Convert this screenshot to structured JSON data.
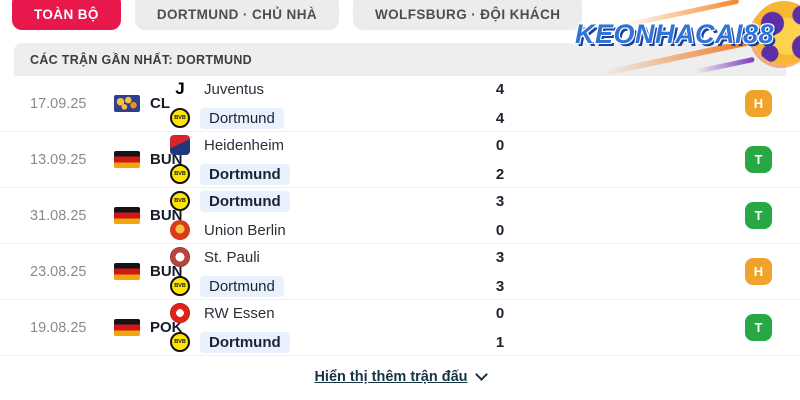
{
  "tabs": [
    {
      "label": "TOÀN BỘ",
      "active": true
    },
    {
      "label": "DORTMUND · CHỦ NHÀ",
      "active": false
    },
    {
      "label": "WOLFSBURG · ĐỘI KHÁCH",
      "active": false
    }
  ],
  "section": {
    "title": "CÁC TRẬN GẦN NHẤT: DORTMUND"
  },
  "watermark": {
    "text": "KEONHACAI88"
  },
  "matches": [
    {
      "date": "17.09.25",
      "competition": "CL",
      "flag": "world-map-flag",
      "teams": [
        {
          "name": "Juventus",
          "logo": "juventus-logo",
          "logo_text": "J",
          "score": "4",
          "highlight": false,
          "bold": false
        },
        {
          "name": "Dortmund",
          "logo": "dortmund-logo",
          "logo_text": "BVB",
          "score": "4",
          "highlight": true,
          "bold": false
        }
      ],
      "result": {
        "label": "H",
        "color": "#f0a32b"
      }
    },
    {
      "date": "13.09.25",
      "competition": "BUN",
      "flag": "german-flag",
      "teams": [
        {
          "name": "Heidenheim",
          "logo": "heidenheim-logo",
          "logo_text": "",
          "score": "0",
          "highlight": false,
          "bold": false
        },
        {
          "name": "Dortmund",
          "logo": "dortmund-logo",
          "logo_text": "BVB",
          "score": "2",
          "highlight": true,
          "bold": true
        }
      ],
      "result": {
        "label": "T",
        "color": "#28a745"
      }
    },
    {
      "date": "31.08.25",
      "competition": "BUN",
      "flag": "german-flag",
      "teams": [
        {
          "name": "Dortmund",
          "logo": "dortmund-logo",
          "logo_text": "BVB",
          "score": "3",
          "highlight": true,
          "bold": true
        },
        {
          "name": "Union Berlin",
          "logo": "union-berlin-logo",
          "logo_text": "",
          "score": "0",
          "highlight": false,
          "bold": false
        }
      ],
      "result": {
        "label": "T",
        "color": "#28a745"
      }
    },
    {
      "date": "23.08.25",
      "competition": "BUN",
      "flag": "german-flag",
      "teams": [
        {
          "name": "St. Pauli",
          "logo": "st-pauli-logo",
          "logo_text": "",
          "score": "3",
          "highlight": false,
          "bold": false
        },
        {
          "name": "Dortmund",
          "logo": "dortmund-logo",
          "logo_text": "BVB",
          "score": "3",
          "highlight": true,
          "bold": false
        }
      ],
      "result": {
        "label": "H",
        "color": "#f0a32b"
      }
    },
    {
      "date": "19.08.25",
      "competition": "POK",
      "flag": "german-flag",
      "teams": [
        {
          "name": "RW Essen",
          "logo": "rw-essen-logo",
          "logo_text": "",
          "score": "0",
          "highlight": false,
          "bold": false
        },
        {
          "name": "Dortmund",
          "logo": "dortmund-logo",
          "logo_text": "BVB",
          "score": "1",
          "highlight": true,
          "bold": true
        }
      ],
      "result": {
        "label": "T",
        "color": "#28a745"
      }
    }
  ],
  "footer": {
    "more_label": "Hiển thị thêm trận đấu"
  },
  "colors": {
    "accent_red": "#e8184c",
    "badge_win": "#28a745",
    "badge_draw": "#f0a32b",
    "dortmund_highlight": "#e9f1fc",
    "section_bar": "#efeeee"
  }
}
